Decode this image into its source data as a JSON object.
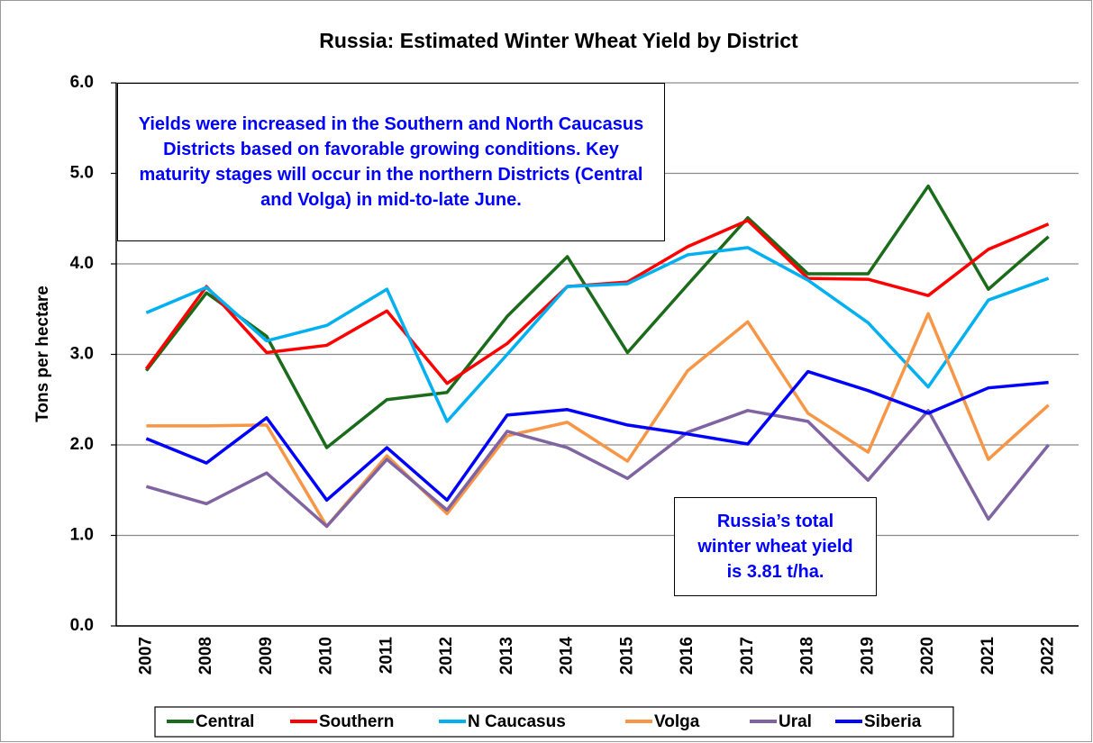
{
  "chart_data": {
    "type": "line",
    "title": "Russia: Estimated Winter Wheat Yield by District",
    "y_label": "Tons per hectare",
    "categories": [
      "2007",
      "2008",
      "2009",
      "2010",
      "2011",
      "2012",
      "2013",
      "2014",
      "2015",
      "2016",
      "2017",
      "2018",
      "2019",
      "2020",
      "2021",
      "2022"
    ],
    "series": [
      {
        "name": "Central",
        "color": "#1a6b1a",
        "values": [
          2.82,
          3.68,
          3.2,
          1.97,
          2.5,
          2.58,
          3.42,
          4.08,
          3.02,
          3.77,
          4.51,
          3.89,
          3.89,
          4.86,
          3.72,
          4.3
        ]
      },
      {
        "name": "Southern",
        "color": "#ff0000",
        "values": [
          2.84,
          3.75,
          3.02,
          3.1,
          3.48,
          2.68,
          3.12,
          3.75,
          3.8,
          4.19,
          4.48,
          3.84,
          3.83,
          3.65,
          4.16,
          4.44
        ]
      },
      {
        "name": "N Caucasus",
        "color": "#00b0f0",
        "values": [
          3.46,
          3.74,
          3.15,
          3.32,
          3.72,
          2.26,
          3.0,
          3.75,
          3.78,
          4.1,
          4.18,
          3.82,
          3.35,
          2.64,
          3.6,
          3.84
        ]
      },
      {
        "name": "Volga",
        "color": "#f79646",
        "values": [
          2.21,
          2.21,
          2.22,
          1.1,
          1.88,
          1.24,
          2.1,
          2.25,
          1.82,
          2.82,
          3.36,
          2.35,
          1.92,
          3.45,
          1.84,
          2.44
        ]
      },
      {
        "name": "Ural",
        "color": "#8064a2",
        "values": [
          1.54,
          1.35,
          1.69,
          1.1,
          1.84,
          1.28,
          2.15,
          1.97,
          1.63,
          2.14,
          2.38,
          2.26,
          1.61,
          2.38,
          1.18,
          2.0
        ]
      },
      {
        "name": "Siberia",
        "color": "#0000ff",
        "values": [
          2.07,
          1.8,
          2.3,
          1.39,
          1.97,
          1.39,
          2.33,
          2.39,
          2.22,
          2.12,
          2.01,
          2.81,
          2.6,
          2.35,
          2.63,
          2.69
        ]
      }
    ],
    "ylim": [
      0,
      6
    ],
    "yticks": [
      {
        "value": 0,
        "label": "0.0"
      },
      {
        "value": 1,
        "label": "1.0"
      },
      {
        "value": 2,
        "label": "2.0"
      },
      {
        "value": 3,
        "label": "3.0"
      },
      {
        "value": 4,
        "label": "4.0"
      },
      {
        "value": 5,
        "label": "5.0"
      },
      {
        "value": 6,
        "label": "6.0"
      }
    ],
    "grid": true,
    "legend": "bottom",
    "annotations": [
      "Yields were increased in the Southern and North Caucasus Districts based on favorable growing conditions. Key maturity stages will occur in the northern Districts (Central and Volga) in mid-to-late June.",
      "Russia’s total winter wheat yield is 3.81 t/ha."
    ]
  }
}
